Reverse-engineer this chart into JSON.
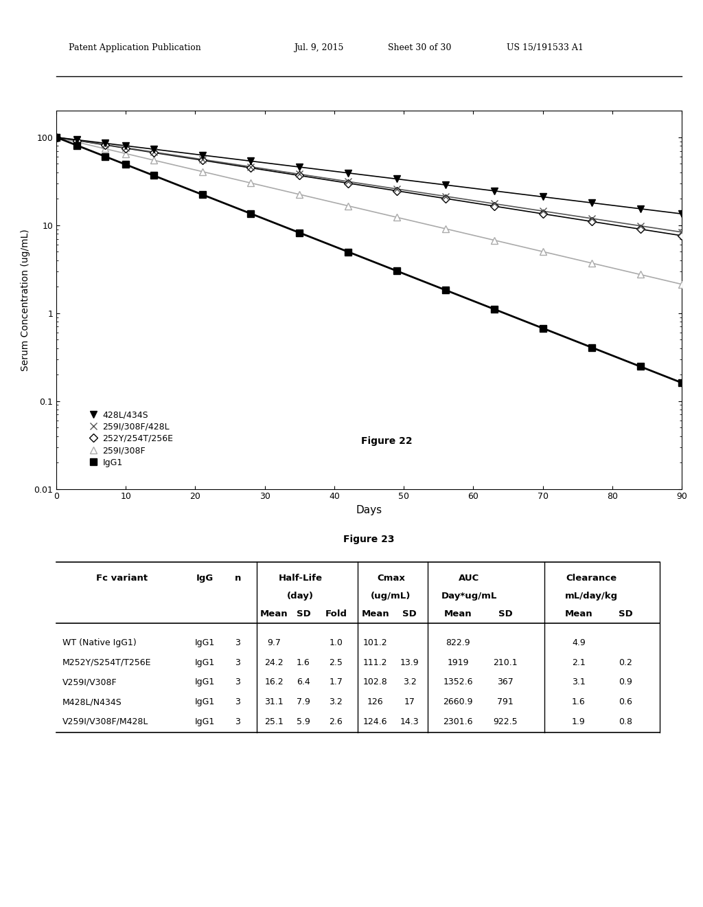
{
  "figure_title": "Figure 22",
  "table_title": "Figure 23",
  "xlabel": "Days",
  "ylabel": "Serum Concentration (ug/mL)",
  "xlim": [
    0,
    90
  ],
  "xticks": [
    0,
    10,
    20,
    30,
    40,
    50,
    60,
    70,
    80,
    90
  ],
  "ylim_log": [
    0.01,
    200
  ],
  "yticks_log": [
    0.01,
    0.1,
    1,
    10,
    100
  ],
  "series": [
    {
      "label": "428L/434S",
      "marker": "v",
      "color": "#000000",
      "mfc": "#000000",
      "hl": 31.1,
      "ms": 7,
      "lw": 1.2,
      "zorder": 5
    },
    {
      "label": "259I/308F/428L",
      "marker": "x",
      "color": "#555555",
      "mfc": "#555555",
      "hl": 25.1,
      "ms": 7,
      "lw": 1.2,
      "zorder": 4
    },
    {
      "label": "252Y/254T/256E",
      "marker": "D",
      "color": "#000000",
      "mfc": "#ffffff",
      "hl": 24.2,
      "ms": 6,
      "lw": 1.2,
      "zorder": 3
    },
    {
      "label": "259I/308F",
      "marker": "^",
      "color": "#aaaaaa",
      "mfc": "#ffffff",
      "hl": 16.2,
      "ms": 7,
      "lw": 1.2,
      "zorder": 2
    },
    {
      "label": "IgG1",
      "marker": "s",
      "color": "#000000",
      "mfc": "#000000",
      "hl": 9.7,
      "ms": 7,
      "lw": 2.0,
      "zorder": 6
    }
  ],
  "data_days": [
    0,
    3,
    7,
    10,
    14,
    21,
    28,
    35,
    42,
    49,
    56,
    63,
    70,
    77,
    84,
    90
  ],
  "table_rows": [
    [
      "WT (Native IgG1)",
      "IgG1",
      "3",
      "9.7",
      "",
      "1.0",
      "101.2",
      "",
      "822.9",
      "",
      "4.9",
      ""
    ],
    [
      "M252Y/S254T/T256E",
      "IgG1",
      "3",
      "24.2",
      "1.6",
      "2.5",
      "111.2",
      "13.9",
      "1919",
      "210.1",
      "2.1",
      "0.2"
    ],
    [
      "V259I/V308F",
      "IgG1",
      "3",
      "16.2",
      "6.4",
      "1.7",
      "102.8",
      "3.2",
      "1352.6",
      "367",
      "3.1",
      "0.9"
    ],
    [
      "M428L/N434S",
      "IgG1",
      "3",
      "31.1",
      "7.9",
      "3.2",
      "126",
      "17",
      "2660.9",
      "791",
      "1.6",
      "0.6"
    ],
    [
      "V259I/V308F/M428L",
      "IgG1",
      "3",
      "25.1",
      "5.9",
      "2.6",
      "124.6",
      "14.3",
      "2301.6",
      "922.5",
      "1.9",
      "0.8"
    ]
  ],
  "col_bounds": [
    0.0,
    0.215,
    0.268,
    0.328,
    0.378,
    0.434,
    0.508,
    0.568,
    0.632,
    0.718,
    0.8,
    0.878,
    0.965
  ],
  "background_color": "#ffffff"
}
